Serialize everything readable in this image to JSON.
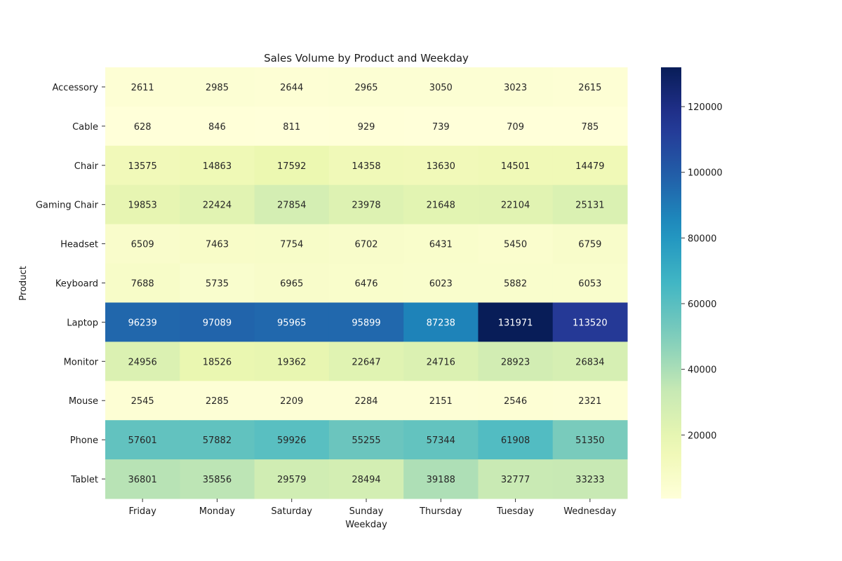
{
  "chart_data": {
    "type": "heatmap",
    "title": "Sales Volume by Product and Weekday",
    "xlabel": "Weekday",
    "ylabel": "Product",
    "x_categories": [
      "Friday",
      "Monday",
      "Saturday",
      "Sunday",
      "Thursday",
      "Tuesday",
      "Wednesday"
    ],
    "y_categories": [
      "Accessory",
      "Cable",
      "Chair",
      "Gaming Chair",
      "Headset",
      "Keyboard",
      "Laptop",
      "Monitor",
      "Mouse",
      "Phone",
      "Tablet"
    ],
    "values": [
      [
        2611,
        2985,
        2644,
        2965,
        3050,
        3023,
        2615
      ],
      [
        628,
        846,
        811,
        929,
        739,
        709,
        785
      ],
      [
        13575,
        14863,
        17592,
        14358,
        13630,
        14501,
        14479
      ],
      [
        19853,
        22424,
        27854,
        23978,
        21648,
        22104,
        25131
      ],
      [
        6509,
        7463,
        7754,
        6702,
        6431,
        5450,
        6759
      ],
      [
        7688,
        5735,
        6965,
        6476,
        6023,
        5882,
        6053
      ],
      [
        96239,
        97089,
        95965,
        95899,
        87238,
        131971,
        113520
      ],
      [
        24956,
        18526,
        19362,
        22647,
        24716,
        28923,
        26834
      ],
      [
        2545,
        2285,
        2209,
        2284,
        2151,
        2546,
        2321
      ],
      [
        57601,
        57882,
        59926,
        55255,
        57344,
        61908,
        51350
      ],
      [
        36801,
        35856,
        29579,
        28494,
        39188,
        32777,
        33233
      ]
    ],
    "colormap": "YlGnBu",
    "colorbar": {
      "range": [
        628,
        131971
      ],
      "ticks": [
        20000,
        40000,
        60000,
        80000,
        100000,
        120000
      ]
    },
    "annotated": true,
    "grid": false
  }
}
